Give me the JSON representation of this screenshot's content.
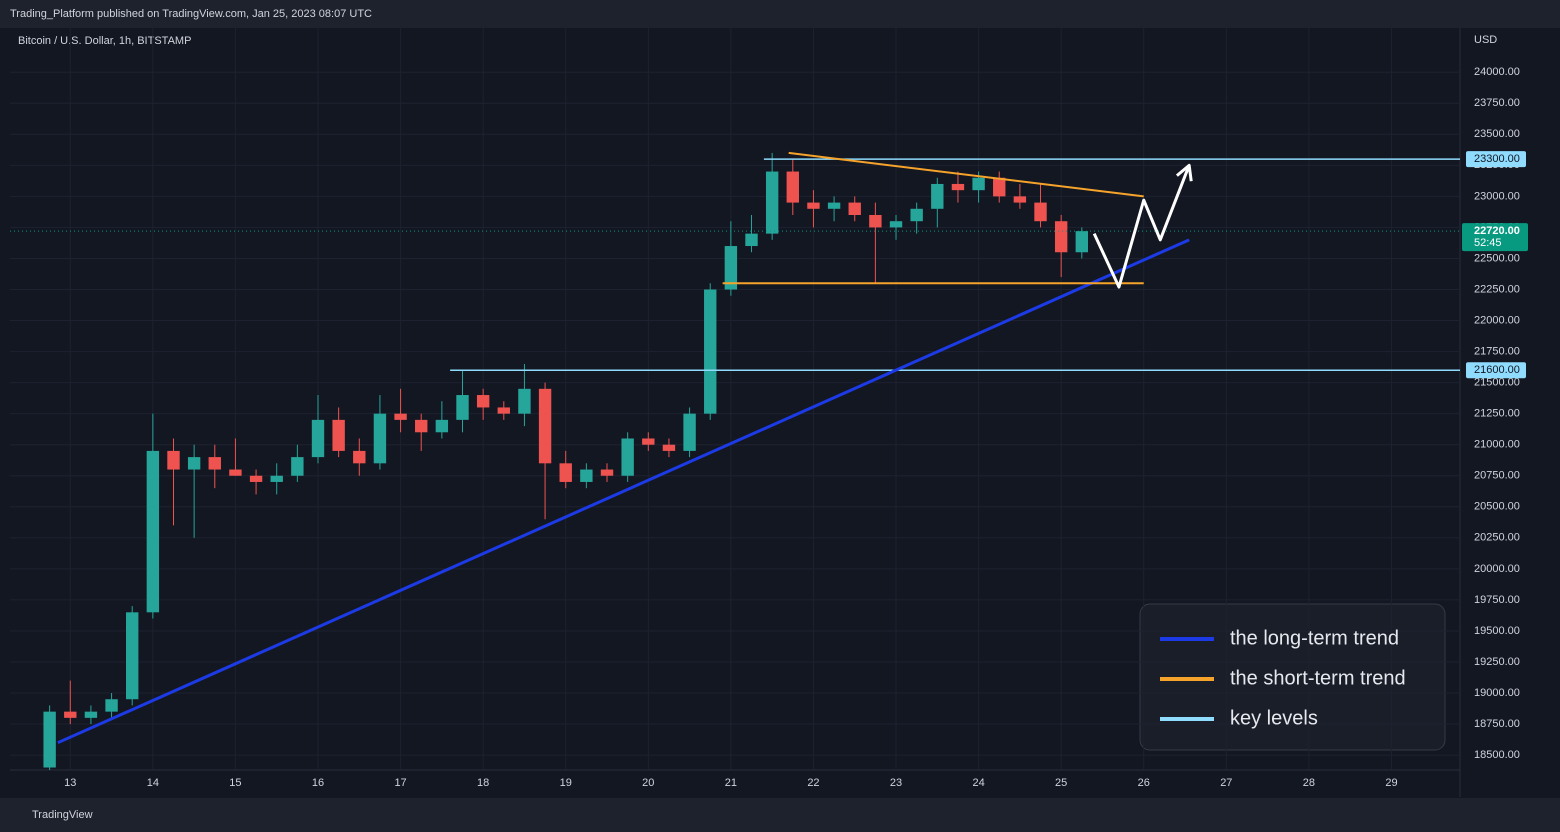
{
  "chart_data": {
    "type": "candlestick",
    "title": "Trading_Platform published on TradingView.com, Jan 25, 2023 08:07 UTC",
    "symbol": "Bitcoin / U.S. Dollar, 1h, BITSTAMP",
    "currency": "USD",
    "footer": "TradingView",
    "up_color": "#26a69a",
    "down_color": "#ef5350",
    "x": [
      12.75,
      13,
      13.25,
      13.5,
      13.75,
      14,
      14.25,
      14.5,
      14.75,
      15,
      15.25,
      15.5,
      15.75,
      16,
      16.25,
      16.5,
      16.75,
      17,
      17.25,
      17.5,
      17.75,
      18,
      18.25,
      18.5,
      18.75,
      19,
      19.25,
      19.5,
      19.75,
      20,
      20.25,
      20.5,
      20.75,
      21,
      21.25,
      21.5,
      21.75,
      22,
      22.25,
      22.5,
      22.75,
      23,
      23.25,
      23.5,
      23.75,
      24,
      24.25,
      24.5,
      24.75,
      25,
      25.25
    ],
    "open": [
      18400,
      18850,
      18800,
      18850,
      18950,
      19650,
      20950,
      20800,
      20900,
      20800,
      20750,
      20700,
      20750,
      20900,
      21200,
      20950,
      20850,
      21250,
      21200,
      21100,
      21200,
      21400,
      21300,
      21250,
      21450,
      20850,
      20700,
      20800,
      20750,
      21050,
      21000,
      20950,
      21250,
      22250,
      22600,
      22700,
      23200,
      22950,
      22900,
      22950,
      22850,
      22750,
      22800,
      22900,
      23100,
      23050,
      23150,
      23000,
      22950,
      22800,
      22550
    ],
    "high": [
      18900,
      19100,
      18900,
      19000,
      19700,
      21250,
      21050,
      21000,
      21000,
      21050,
      20800,
      20850,
      21000,
      21400,
      21300,
      21050,
      21400,
      21450,
      21250,
      21350,
      21600,
      21450,
      21350,
      21650,
      21500,
      20950,
      20850,
      20850,
      21100,
      21100,
      21050,
      21300,
      22300,
      22800,
      22850,
      23350,
      23300,
      23050,
      23000,
      23000,
      22950,
      22850,
      22950,
      23150,
      23200,
      23200,
      23200,
      23100,
      23100,
      22850,
      22750
    ],
    "low": [
      18380,
      18750,
      18750,
      18780,
      18900,
      19600,
      20350,
      20250,
      20650,
      20750,
      20600,
      20600,
      20700,
      20850,
      20900,
      20750,
      20800,
      21100,
      20950,
      21050,
      21100,
      21200,
      21200,
      21150,
      20400,
      20650,
      20650,
      20700,
      20700,
      20950,
      20900,
      20900,
      21200,
      22200,
      22550,
      22650,
      22850,
      22750,
      22800,
      22800,
      22300,
      22650,
      22700,
      22750,
      22950,
      22950,
      22950,
      22900,
      22750,
      22350,
      22500
    ],
    "close": [
      18850,
      18800,
      18850,
      18950,
      19650,
      20950,
      20800,
      20900,
      20800,
      20750,
      20700,
      20750,
      20900,
      21200,
      20950,
      20850,
      21250,
      21200,
      21100,
      21200,
      21400,
      21300,
      21250,
      21450,
      20850,
      20700,
      20800,
      20750,
      21050,
      21000,
      20950,
      21250,
      22250,
      22600,
      22700,
      23200,
      22950,
      22900,
      22950,
      22850,
      22750,
      22800,
      22900,
      23100,
      23050,
      23150,
      23000,
      22950,
      22800,
      22550,
      22720
    ],
    "xlim": [
      12.27,
      29.83
    ],
    "ylim": [
      18380,
      24340
    ],
    "xticks": [
      13,
      14,
      15,
      16,
      17,
      18,
      19,
      20,
      21,
      22,
      23,
      24,
      25,
      26,
      27,
      28,
      29
    ],
    "yticks": [
      {
        "value": 18500,
        "label": "18500.00"
      },
      {
        "value": 18750,
        "label": "18750.00"
      },
      {
        "value": 19000,
        "label": "19000.00"
      },
      {
        "value": 19250,
        "label": "19250.00"
      },
      {
        "value": 19500,
        "label": "19500.00"
      },
      {
        "value": 19750,
        "label": "19750.00"
      },
      {
        "value": 20000,
        "label": "20000.00"
      },
      {
        "value": 20250,
        "label": "20250.00"
      },
      {
        "value": 20500,
        "label": "20500.00"
      },
      {
        "value": 20750,
        "label": "20750.00"
      },
      {
        "value": 21000,
        "label": "21000.00"
      },
      {
        "value": 21250,
        "label": "21250.00"
      },
      {
        "value": 21500,
        "label": "21500.00"
      },
      {
        "value": 21750,
        "label": "21750.00"
      },
      {
        "value": 22000,
        "label": "22000.00"
      },
      {
        "value": 22250,
        "label": "22250.00"
      },
      {
        "value": 22500,
        "label": "22500.00"
      },
      {
        "value": 22750,
        "label": "22750.00"
      },
      {
        "value": 23000,
        "label": "23000.00"
      },
      {
        "value": 23250,
        "label": "23250.00"
      },
      {
        "value": 23500,
        "label": "23500.00"
      },
      {
        "value": 23750,
        "label": "23750.00"
      },
      {
        "value": 24000,
        "label": "24000.00"
      }
    ],
    "grid": true,
    "last_price": {
      "value": 22720,
      "label": "22720.00",
      "countdown": "52:45",
      "color": "#089981"
    },
    "key_levels": [
      {
        "value": 23300,
        "label": "23300.00",
        "start": 21.4
      },
      {
        "value": 21600,
        "label": "21600.00",
        "start": 17.6
      }
    ],
    "trendlines": [
      {
        "color": "#1c3be6",
        "lines": [
          {
            "x": [
              12.85,
              26.55
            ],
            "y": [
              18600,
              22650
            ]
          }
        ]
      },
      {
        "color": "#f5a32a",
        "lines": [
          {
            "x": [
              21.7,
              26.0
            ],
            "y": [
              23350,
              23000
            ]
          },
          {
            "x": [
              20.9,
              26.0
            ],
            "y": [
              22300,
              22300
            ]
          }
        ]
      }
    ],
    "projection": {
      "color": "#ffffff",
      "x": [
        25.4,
        25.7,
        26.0,
        26.2,
        26.55
      ],
      "y": [
        22700,
        22270,
        22970,
        22650,
        23250
      ]
    },
    "legend": [
      {
        "name": "the long-term trend",
        "color": "#1c3be6"
      },
      {
        "name": "the short-term trend",
        "color": "#f5a32a"
      },
      {
        "name": "key levels",
        "color": "#8fdcff"
      }
    ]
  }
}
